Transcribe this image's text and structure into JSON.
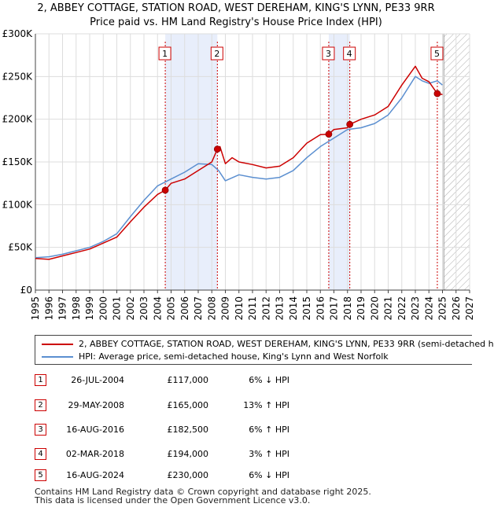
{
  "title_line1": "2, ABBEY COTTAGE, STATION ROAD, WEST DEREHAM, KING'S LYNN, PE33 9RR",
  "title_line2": "Price paid vs. HM Land Registry's House Price Index (HPI)",
  "legend": {
    "property": "2, ABBEY COTTAGE, STATION ROAD, WEST DEREHAM, KING'S LYNN, PE33 9RR (semi-detached h",
    "hpi": "HPI: Average price, semi-detached house, King's Lynn and West Norfolk"
  },
  "sales": [
    {
      "num": "1",
      "date": "26-JUL-2004",
      "price": "£117,000",
      "hpi": "6% ↓ HPI"
    },
    {
      "num": "2",
      "date": "29-MAY-2008",
      "price": "£165,000",
      "hpi": "13% ↑ HPI"
    },
    {
      "num": "3",
      "date": "16-AUG-2016",
      "price": "£182,500",
      "hpi": "6% ↑ HPI"
    },
    {
      "num": "4",
      "date": "02-MAR-2018",
      "price": "£194,000",
      "hpi": "3% ↑ HPI"
    },
    {
      "num": "5",
      "date": "16-AUG-2024",
      "price": "£230,000",
      "hpi": "6% ↓ HPI"
    }
  ],
  "footer": {
    "line1": "Contains HM Land Registry data © Crown copyright and database right 2025.",
    "line2": "This data is licensed under the Open Government Licence v3.0."
  },
  "colors": {
    "property": "#cc0000",
    "hpi": "#5b8fd0",
    "shade": "#e8eefb",
    "hatch": "#aaaaaa"
  },
  "chart_data": {
    "type": "line",
    "xlim": [
      1995,
      2027
    ],
    "ylim": [
      0,
      300000
    ],
    "x_ticks": [
      "1995",
      "1996",
      "1997",
      "1998",
      "1999",
      "2000",
      "2001",
      "2002",
      "2003",
      "2004",
      "2005",
      "2006",
      "2007",
      "2008",
      "2009",
      "2010",
      "2011",
      "2012",
      "2013",
      "2014",
      "2015",
      "2016",
      "2017",
      "2018",
      "2019",
      "2020",
      "2021",
      "2022",
      "2023",
      "2024",
      "2025",
      "2026",
      "2027"
    ],
    "y_ticks": [
      {
        "value": 0,
        "label": "£0"
      },
      {
        "value": 50000,
        "label": "£50K"
      },
      {
        "value": 100000,
        "label": "£100K"
      },
      {
        "value": 150000,
        "label": "£150K"
      },
      {
        "value": 200000,
        "label": "£200K"
      },
      {
        "value": 250000,
        "label": "£250K"
      },
      {
        "value": 300000,
        "label": "£300K"
      }
    ],
    "grid": true,
    "shaded_periods": [
      [
        2004.57,
        2008.41
      ],
      [
        2016.62,
        2018.17
      ]
    ],
    "future_hatch_from": 2025.1,
    "sale_markers": [
      {
        "label": "1",
        "x": 2004.57,
        "y": 117000
      },
      {
        "label": "2",
        "x": 2008.41,
        "y": 165000
      },
      {
        "label": "3",
        "x": 2016.62,
        "y": 182500
      },
      {
        "label": "4",
        "x": 2018.17,
        "y": 194000
      },
      {
        "label": "5",
        "x": 2024.62,
        "y": 230000
      }
    ],
    "series": [
      {
        "name": "2, ABBEY COTTAGE, STATION ROAD, WEST DEREHAM, KING'S LYNN, PE33 9RR (semi-detached h",
        "x": [
          1995,
          1996,
          1997,
          1998,
          1999,
          2000,
          2001,
          2002,
          2003,
          2004,
          2004.57,
          2005,
          2006,
          2007,
          2008,
          2008.41,
          2008.6,
          2009,
          2009.5,
          2010,
          2011,
          2012,
          2013,
          2014,
          2015,
          2016,
          2016.62,
          2017,
          2018,
          2018.17,
          2019,
          2020,
          2021,
          2022,
          2023,
          2023.5,
          2024,
          2024.62,
          2025
        ],
        "y": [
          37000,
          36000,
          40000,
          44000,
          48000,
          55000,
          62000,
          80000,
          97000,
          112000,
          117000,
          125000,
          130000,
          140000,
          150000,
          165000,
          168000,
          148000,
          155000,
          150000,
          147000,
          143000,
          145000,
          155000,
          172000,
          182000,
          182500,
          188000,
          190000,
          194000,
          200000,
          205000,
          215000,
          240000,
          262000,
          248000,
          244000,
          230000,
          229000
        ]
      },
      {
        "name": "HPI: Average price, semi-detached house, King's Lynn and West Norfolk",
        "x": [
          1995,
          1996,
          1997,
          1998,
          1999,
          2000,
          2001,
          2002,
          2003,
          2004,
          2005,
          2006,
          2007,
          2008,
          2008.5,
          2009,
          2010,
          2011,
          2012,
          2013,
          2014,
          2015,
          2016,
          2017,
          2018,
          2019,
          2020,
          2021,
          2022,
          2023,
          2023.5,
          2024,
          2024.62,
          2025
        ],
        "y": [
          38000,
          39000,
          42000,
          46000,
          50000,
          57000,
          66000,
          86000,
          105000,
          122000,
          130000,
          138000,
          148000,
          147000,
          140000,
          128000,
          135000,
          132000,
          130000,
          132000,
          140000,
          155000,
          168000,
          178000,
          188000,
          190000,
          195000,
          205000,
          225000,
          250000,
          245000,
          242000,
          245000,
          240000
        ]
      }
    ]
  }
}
